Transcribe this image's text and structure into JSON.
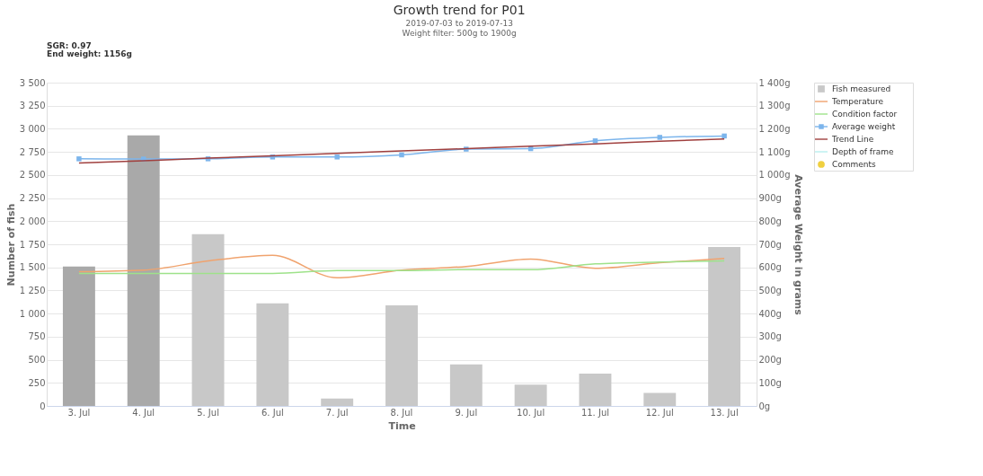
{
  "chart_data": {
    "type": "bar",
    "title": "Growth trend for P01",
    "subtitle": "2019-07-03 to 2019-07-13\nWeight filter: 500g to 1900g",
    "xlabel": "Time",
    "ylabel": "Number of fish",
    "y2label": "Average Weight in grams",
    "annotations": [
      "SGR: 0.97",
      "End weight: 1156g"
    ],
    "categories": [
      "3. Jul",
      "4. Jul",
      "5. Jul",
      "6. Jul",
      "7. Jul",
      "8. Jul",
      "9. Jul",
      "10. Jul",
      "11. Jul",
      "12. Jul",
      "13. Jul"
    ],
    "series": [
      {
        "name": "Fish measured",
        "colors": [
          "#a9a9a9",
          "#a9a9a9",
          "#c8c8c8",
          "#c8c8c8",
          "#c8c8c8",
          "#c8c8c8",
          "#c8c8c8",
          "#c8c8c8",
          "#c8c8c8",
          "#c8c8c8",
          "#c8c8c8"
        ],
        "color": "#c8c8c8",
        "values": [
          1510,
          2930,
          1860,
          1110,
          80,
          1090,
          450,
          230,
          350,
          140,
          1720
        ]
      },
      {
        "name": "Temperature",
        "type": "line",
        "axis": "y2",
        "color": "#f0a36e",
        "values": [
          581,
          588,
          628,
          652,
          555,
          588,
          604,
          636,
          596,
          620,
          639
        ]
      },
      {
        "name": "Condition factor",
        "type": "line",
        "axis": "y2",
        "color": "#9ee28a",
        "values": [
          574,
          574,
          574,
          574,
          586,
          586,
          590,
          590,
          615,
          623,
          628
        ]
      },
      {
        "name": "Average weight",
        "type": "line",
        "axis": "y2",
        "color": "#7cb5ec",
        "marker": "square",
        "values": [
          1070,
          1069,
          1070,
          1078,
          1078,
          1087,
          1112,
          1114,
          1148,
          1163,
          1169
        ]
      },
      {
        "name": "Trend Line",
        "type": "line",
        "axis": "y2",
        "color": "#a0403f",
        "values": [
          1052,
          1062,
          1073,
          1083,
          1094,
          1104,
          1114,
          1125,
          1135,
          1146,
          1156
        ]
      },
      {
        "name": "Depth of frame",
        "type": "line",
        "axis": "y2",
        "color": "#b8f0f0",
        "values": [
          null,
          null,
          null,
          null,
          null,
          null,
          null,
          null,
          null,
          null,
          null
        ]
      },
      {
        "name": "Comments",
        "type": "scatter",
        "axis": "y2",
        "color": "#f0d040",
        "values": [
          null,
          null,
          null,
          null,
          null,
          null,
          null,
          null,
          null,
          null,
          null
        ]
      }
    ],
    "ylim": [
      0,
      3500
    ],
    "yticks": [
      0,
      {
        "value": 250,
        "label": "250"
      },
      {
        "value": 500,
        "label": "500"
      },
      {
        "value": 750,
        "label": "750"
      },
      {
        "value": 1000,
        "label": "1 000"
      },
      {
        "value": 1250,
        "label": "1 250"
      },
      {
        "value": 1500,
        "label": "1 500"
      },
      {
        "value": 1750,
        "label": "1 750"
      },
      {
        "value": 2000,
        "label": "2 000"
      },
      {
        "value": 2250,
        "label": "2 250"
      },
      {
        "value": 2500,
        "label": "2 500"
      },
      {
        "value": 2750,
        "label": "2 750"
      },
      {
        "value": 3000,
        "label": "3 000"
      },
      {
        "value": 3250,
        "label": "3 250"
      },
      {
        "value": 3500,
        "label": "3 500"
      }
    ],
    "y2lim": [
      0,
      1400
    ],
    "y2ticks": [
      {
        "value": 0,
        "label": "0g"
      },
      {
        "value": 100,
        "label": "100g"
      },
      {
        "value": 200,
        "label": "200g"
      },
      {
        "value": 300,
        "label": "300g"
      },
      {
        "value": 400,
        "label": "400g"
      },
      {
        "value": 500,
        "label": "500g"
      },
      {
        "value": 600,
        "label": "600g"
      },
      {
        "value": 700,
        "label": "700g"
      },
      {
        "value": 800,
        "label": "800g"
      },
      {
        "value": 900,
        "label": "900g"
      },
      {
        "value": 1000,
        "label": "1 000g"
      },
      {
        "value": 1100,
        "label": "1 100g"
      },
      {
        "value": 1200,
        "label": "1 200g"
      },
      {
        "value": 1300,
        "label": "1 300g"
      },
      {
        "value": 1400,
        "label": "1 400g"
      }
    ],
    "grid": "y",
    "legend": "right"
  }
}
